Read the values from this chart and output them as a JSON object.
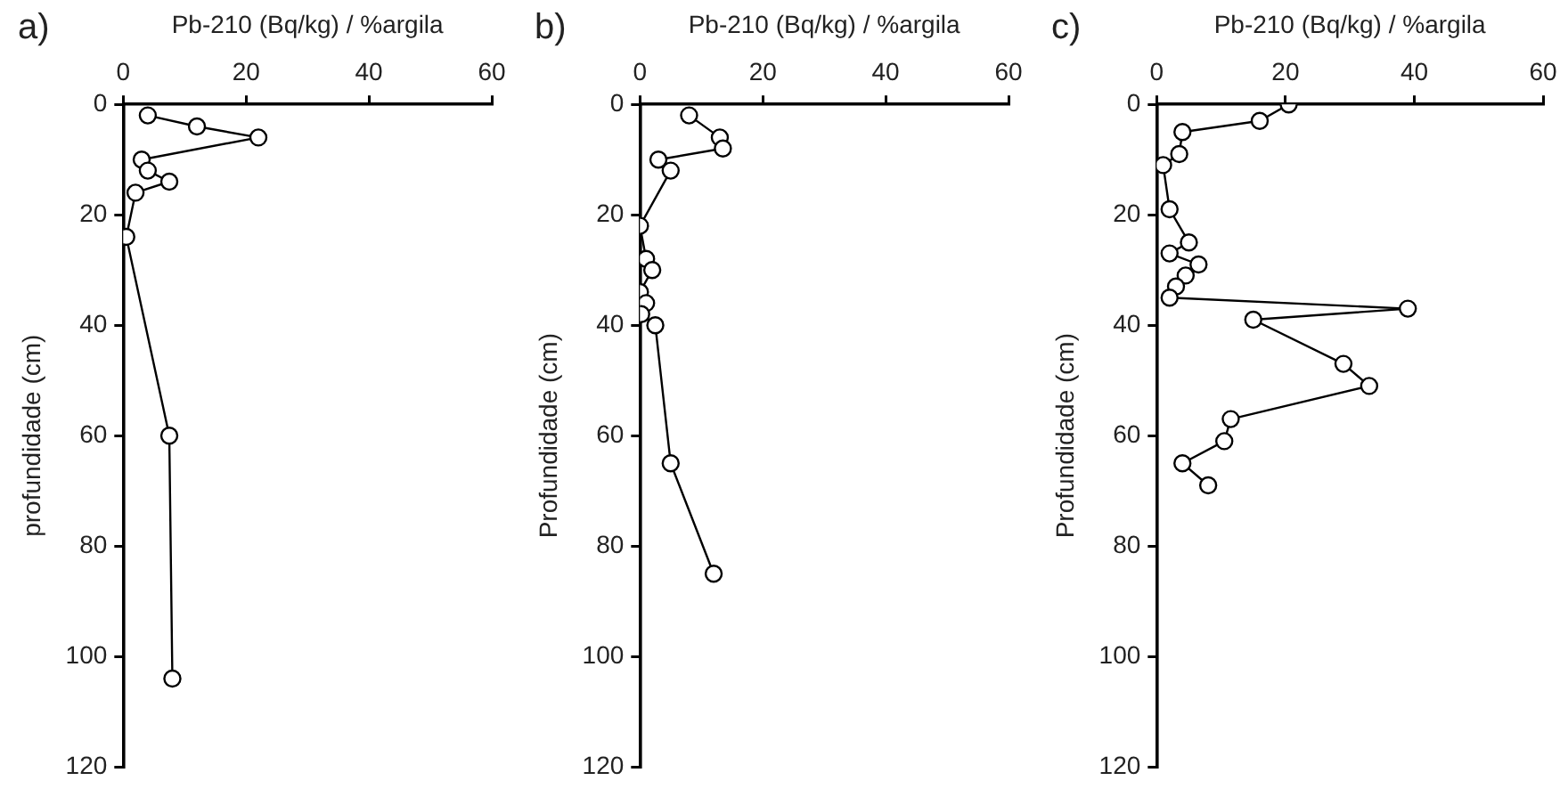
{
  "chart_data": [
    {
      "type": "line",
      "title": "a)",
      "xlabel": "Pb-210 (Bq/kg) / %argila",
      "ylabel": "profundidade (cm)",
      "orientation": "horizontal",
      "marker": "circle",
      "grid": false,
      "legend": false,
      "x": [
        2,
        4,
        6,
        10,
        12,
        14,
        16,
        24,
        60,
        104
      ],
      "series": [
        {
          "color": "#000000",
          "values": [
            4,
            12,
            22,
            3,
            4,
            7.5,
            2,
            0.5,
            7.5,
            8
          ]
        }
      ],
      "xlim": [
        0,
        60
      ],
      "xticks": [
        0,
        20,
        40,
        60
      ],
      "ylim": [
        120,
        0
      ],
      "yticks": [
        0,
        20,
        40,
        60,
        80,
        100,
        120
      ]
    },
    {
      "type": "line",
      "title": "b)",
      "xlabel": "Pb-210 (Bq/kg) / %argila",
      "ylabel": "Profundidade (cm)",
      "orientation": "horizontal",
      "marker": "circle",
      "grid": false,
      "legend": false,
      "x": [
        2,
        6,
        8,
        10,
        12,
        22,
        28,
        30,
        34,
        36,
        38,
        40,
        65,
        85
      ],
      "series": [
        {
          "color": "#000000",
          "values": [
            8,
            13,
            13.5,
            3,
            5,
            0,
            1,
            2,
            0,
            1,
            0.2,
            2.5,
            5,
            12
          ]
        }
      ],
      "xlim": [
        0,
        60
      ],
      "xticks": [
        0,
        20,
        40,
        60
      ],
      "ylim": [
        120,
        0
      ],
      "yticks": [
        0,
        20,
        40,
        60,
        80,
        100,
        120
      ]
    },
    {
      "type": "line",
      "title": "c)",
      "xlabel": "Pb-210 (Bq/kg) / %argila",
      "ylabel": "Profundidade (cm)",
      "orientation": "horizontal",
      "marker": "circle",
      "grid": false,
      "legend": false,
      "x": [
        0,
        3,
        5,
        9,
        11,
        19,
        25,
        27,
        29,
        31,
        33,
        35,
        37,
        39,
        47,
        51,
        57,
        61,
        65,
        69
      ],
      "series": [
        {
          "color": "#000000",
          "values": [
            20.5,
            16,
            4,
            3.5,
            1,
            2,
            5,
            2,
            6.5,
            4.5,
            3,
            2,
            39,
            15,
            29,
            33,
            11.5,
            10.5,
            4,
            8
          ]
        }
      ],
      "xlim": [
        0,
        60
      ],
      "xticks": [
        0,
        20,
        40,
        60
      ],
      "ylim": [
        120,
        0
      ],
      "yticks": [
        0,
        20,
        40,
        60,
        80,
        100,
        120
      ]
    }
  ]
}
